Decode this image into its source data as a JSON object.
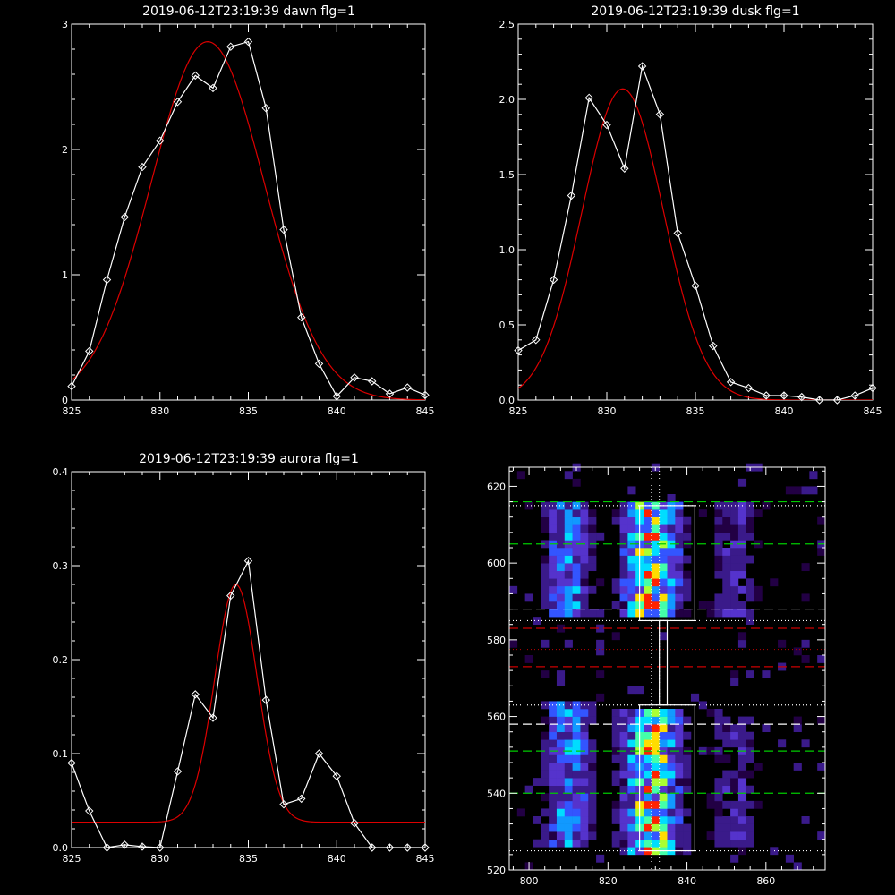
{
  "chart_data": [
    {
      "type": "line",
      "title": "2019-06-12T23:19:39 dawn flg=1",
      "xlim": [
        825,
        845
      ],
      "ylim": [
        0,
        3
      ],
      "xticks": [
        825,
        830,
        835,
        840,
        845
      ],
      "xtick_labels": [
        "825",
        "830",
        "835",
        "840",
        "845"
      ],
      "yticks": [
        0,
        1,
        2,
        3
      ],
      "ytick_labels": [
        "0",
        "1",
        "2",
        "3"
      ],
      "series": [
        {
          "role": "data",
          "color": "#ffffff",
          "marker": "diamond",
          "x": [
            825,
            826,
            827,
            828,
            829,
            830,
            831,
            832,
            833,
            834,
            835,
            836,
            837,
            838,
            839,
            840,
            841,
            842,
            843,
            844,
            845
          ],
          "y": [
            0.11,
            0.39,
            0.96,
            1.46,
            1.86,
            2.07,
            2.38,
            2.59,
            2.49,
            2.82,
            2.86,
            2.33,
            1.36,
            0.66,
            0.29,
            0.03,
            0.18,
            0.15,
            0.05,
            0.1,
            0.04
          ]
        },
        {
          "role": "fit",
          "color": "#dd0000",
          "fit": "gaussian",
          "amplitude": 2.86,
          "center": 832.7,
          "sigma": 3.2,
          "offset": 0.0
        }
      ]
    },
    {
      "type": "line",
      "title": "2019-06-12T23:19:39 dusk flg=1",
      "xlim": [
        825,
        845
      ],
      "ylim": [
        0,
        2.5
      ],
      "xticks": [
        825,
        830,
        835,
        840,
        845
      ],
      "xtick_labels": [
        "825",
        "830",
        "835",
        "840",
        "845"
      ],
      "yticks": [
        0,
        0.5,
        1.0,
        1.5,
        2.0,
        2.5
      ],
      "ytick_labels": [
        "0.0",
        "0.5",
        "1.0",
        "1.5",
        "2.0",
        "2.5"
      ],
      "series": [
        {
          "role": "data",
          "color": "#ffffff",
          "marker": "diamond",
          "x": [
            825,
            826,
            827,
            828,
            829,
            830,
            831,
            832,
            833,
            834,
            835,
            836,
            837,
            838,
            839,
            840,
            841,
            842,
            843,
            844,
            845
          ],
          "y": [
            0.33,
            0.4,
            0.8,
            1.36,
            2.01,
            1.83,
            1.54,
            2.22,
            1.9,
            1.11,
            0.76,
            0.36,
            0.12,
            0.08,
            0.03,
            0.03,
            0.02,
            0.0,
            0.0,
            0.03,
            0.08
          ]
        },
        {
          "role": "fit",
          "color": "#dd0000",
          "fit": "gaussian",
          "amplitude": 2.07,
          "center": 830.9,
          "sigma": 2.3,
          "offset": 0.0
        }
      ]
    },
    {
      "type": "line",
      "title": "2019-06-12T23:19:39 aurora flg=1",
      "xlim": [
        825,
        845
      ],
      "ylim": [
        0,
        0.4
      ],
      "xticks": [
        825,
        830,
        835,
        840,
        845
      ],
      "xtick_labels": [
        "825",
        "830",
        "835",
        "840",
        "845"
      ],
      "yticks": [
        0,
        0.1,
        0.2,
        0.3,
        0.4
      ],
      "ytick_labels": [
        "0.0",
        "0.1",
        "0.2",
        "0.3",
        "0.4"
      ],
      "series": [
        {
          "role": "data",
          "color": "#ffffff",
          "marker": "diamond",
          "x": [
            825,
            826,
            827,
            828,
            829,
            830,
            831,
            832,
            833,
            834,
            835,
            836,
            837,
            838,
            839,
            840,
            841,
            842,
            843,
            844,
            845
          ],
          "y": [
            0.09,
            0.039,
            0.0,
            0.003,
            0.001,
            0.0,
            0.081,
            0.163,
            0.138,
            0.268,
            0.305,
            0.157,
            0.046,
            0.052,
            0.1,
            0.076,
            0.026,
            0.0,
            0.0,
            0.0,
            0.0
          ]
        },
        {
          "role": "fit",
          "color": "#dd0000",
          "fit": "gaussian",
          "amplitude": 0.253,
          "center": 834.3,
          "sigma": 1.2,
          "offset": 0.027
        }
      ]
    },
    {
      "type": "heatmap",
      "title": "",
      "xlim": [
        795,
        875
      ],
      "ylim": [
        520,
        625
      ],
      "xticks": [
        800,
        820,
        840,
        860
      ],
      "xtick_labels": [
        "800",
        "820",
        "840",
        "860"
      ],
      "yticks": [
        520,
        540,
        560,
        580,
        600,
        620
      ],
      "ytick_labels": [
        "520",
        "540",
        "560",
        "580",
        "600",
        "620"
      ],
      "colormap": [
        "#220044",
        "#3a1a8a",
        "#5533cc",
        "#3355ff",
        "#1199ff",
        "#00ddff",
        "#44ffaa",
        "#aaff33",
        "#ffdd00",
        "#ff2200"
      ],
      "bands": [
        {
          "x_center": 810,
          "x_width": 7,
          "y_ranges": [
            [
              586,
              615
            ],
            [
              527,
              563
            ]
          ],
          "intensity": 0.45
        },
        {
          "x_center": 831,
          "x_width": 8,
          "y_ranges": [
            [
              586,
              615
            ],
            [
              525,
              562
            ]
          ],
          "intensity": 0.8
        },
        {
          "x_center": 852,
          "x_width": 7,
          "y_ranges": [
            [
              586,
              615
            ],
            [
              527,
              560
            ]
          ],
          "intensity": 0.2
        }
      ],
      "boxes": [
        {
          "x": [
            828,
            842
          ],
          "y": [
            585,
            615
          ],
          "color": "#ffffff"
        },
        {
          "x": [
            828,
            842
          ],
          "y": [
            525,
            563
          ],
          "color": "#ffffff"
        },
        {
          "x": [
            833,
            835
          ],
          "y": [
            563,
            585
          ],
          "color": "#ffffff"
        }
      ],
      "hlines": [
        {
          "y": 616,
          "color": "#00cc00",
          "style": "dashed"
        },
        {
          "y": 605,
          "color": "#00cc00",
          "style": "dashed"
        },
        {
          "y": 551,
          "color": "#00cc00",
          "style": "dashed"
        },
        {
          "y": 540,
          "color": "#00cc00",
          "style": "dashed"
        },
        {
          "y": 583,
          "color": "#cc0000",
          "style": "dashed"
        },
        {
          "y": 573,
          "color": "#cc0000",
          "style": "dashed"
        },
        {
          "y": 577.5,
          "color": "#aa0000",
          "style": "dotted"
        },
        {
          "y": 588,
          "color": "#ffffff",
          "style": "dashed"
        },
        {
          "y": 558,
          "color": "#ffffff",
          "style": "dashed"
        },
        {
          "y": 615,
          "color": "#ffffff",
          "style": "dotted"
        },
        {
          "y": 585,
          "color": "#ffffff",
          "style": "dotted"
        },
        {
          "y": 563,
          "color": "#ffffff",
          "style": "dotted"
        },
        {
          "y": 525,
          "color": "#ffffff",
          "style": "dotted"
        }
      ],
      "vlines": [
        {
          "x": 831,
          "color": "#ffffff",
          "style": "dotted"
        },
        {
          "x": 833,
          "color": "#ffffff",
          "style": "dotted"
        }
      ]
    }
  ]
}
